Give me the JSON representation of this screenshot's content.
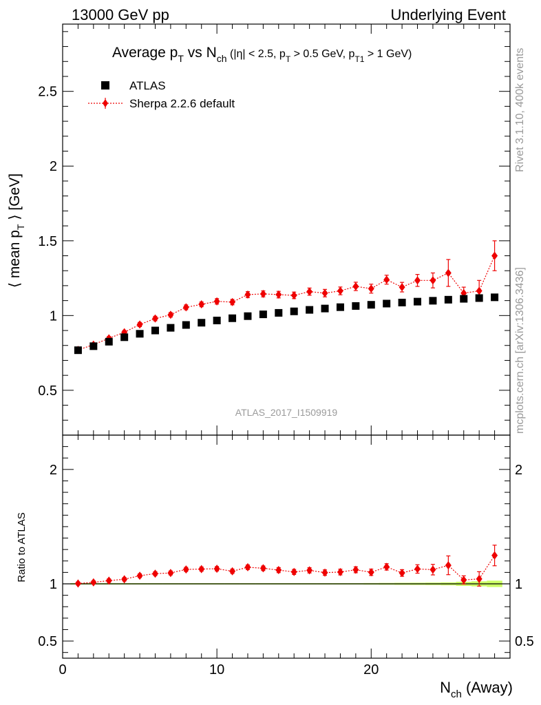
{
  "header": {
    "left": "13000 GeV pp",
    "right": "Underlying Event"
  },
  "side_labels": {
    "rivet": "Rivet 3.1.10,  400k events",
    "mcplots": "mcplots.cern.ch [arXiv:1306.3436]"
  },
  "chart_data": [
    {
      "type": "scatter",
      "title": {
        "main": "Average p",
        "sub1": "T",
        "mid": " vs N",
        "sub2": "ch",
        "cuts_a": " (|η| < 2.5, p",
        "cuts_sub1": "T",
        "cuts_b": " > 0.5 GeV, p",
        "cuts_sub2": "T1",
        "cuts_c": " > 1 GeV)"
      },
      "ylabel": {
        "pre": "⟨ mean p",
        "sub": "T",
        "post": " ⟩ [GeV]"
      },
      "watermark": "ATLAS_2017_I1509919",
      "xlim": [
        0,
        29
      ],
      "ylim": [
        0.2,
        2.95
      ],
      "yticks": [
        0.5,
        1,
        1.5,
        2,
        2.5
      ],
      "ytick_labels": [
        "0.5",
        "1",
        "1.5",
        "2",
        "2.5"
      ],
      "legend_position": "top-left",
      "x": [
        1,
        2,
        3,
        4,
        5,
        6,
        7,
        8,
        9,
        10,
        11,
        12,
        13,
        14,
        15,
        16,
        17,
        18,
        19,
        20,
        21,
        22,
        23,
        24,
        25,
        26,
        27,
        28
      ],
      "series": [
        {
          "name": "ATLAS",
          "color": "#000000",
          "marker": "square",
          "values": [
            0.768,
            0.795,
            0.825,
            0.855,
            0.878,
            0.9,
            0.918,
            0.937,
            0.952,
            0.967,
            0.982,
            0.996,
            1.008,
            1.018,
            1.028,
            1.038,
            1.047,
            1.056,
            1.064,
            1.072,
            1.08,
            1.087,
            1.093,
            1.099,
            1.106,
            1.112,
            1.117,
            1.122
          ],
          "errors": [
            0.005,
            0.005,
            0.005,
            0.005,
            0.005,
            0.005,
            0.005,
            0.005,
            0.005,
            0.005,
            0.005,
            0.005,
            0.005,
            0.005,
            0.005,
            0.005,
            0.005,
            0.005,
            0.005,
            0.005,
            0.005,
            0.005,
            0.005,
            0.005,
            0.006,
            0.008,
            0.01,
            0.012
          ]
        },
        {
          "name": "Sherpa 2.2.6 default",
          "color": "#ee0000",
          "marker": "diamond",
          "linestyle": "dotted",
          "values": [
            0.77,
            0.805,
            0.848,
            0.888,
            0.94,
            0.98,
            1.005,
            1.055,
            1.075,
            1.095,
            1.09,
            1.14,
            1.145,
            1.14,
            1.135,
            1.16,
            1.15,
            1.165,
            1.195,
            1.18,
            1.24,
            1.19,
            1.235,
            1.235,
            1.285,
            1.15,
            1.165,
            1.4
          ],
          "errors": [
            0.01,
            0.01,
            0.012,
            0.012,
            0.014,
            0.015,
            0.015,
            0.016,
            0.016,
            0.018,
            0.018,
            0.02,
            0.02,
            0.022,
            0.022,
            0.024,
            0.025,
            0.026,
            0.028,
            0.03,
            0.03,
            0.032,
            0.04,
            0.05,
            0.09,
            0.04,
            0.07,
            0.1
          ]
        }
      ]
    },
    {
      "type": "scatter",
      "ylabel": "Ratio to ATLAS",
      "xlabel_pre": "N",
      "xlabel_sub": "ch",
      "xlabel_post": " (Away)",
      "xlim": [
        0,
        29
      ],
      "ylim": [
        0.35,
        2.3
      ],
      "xticks": [
        0,
        10,
        20
      ],
      "xtick_labels": [
        "0",
        "10",
        "20"
      ],
      "yticks": [
        0.5,
        1,
        2
      ],
      "ytick_labels": [
        "0.5",
        "1",
        "2"
      ],
      "reference_line": 1,
      "band_color": "#ccff66",
      "x": [
        1,
        2,
        3,
        4,
        5,
        6,
        7,
        8,
        9,
        10,
        11,
        12,
        13,
        14,
        15,
        16,
        17,
        18,
        19,
        20,
        21,
        22,
        23,
        24,
        25,
        26,
        27,
        28
      ],
      "band_halfwidth": [
        0.006,
        0.006,
        0.006,
        0.006,
        0.006,
        0.006,
        0.006,
        0.006,
        0.006,
        0.006,
        0.006,
        0.006,
        0.006,
        0.006,
        0.006,
        0.006,
        0.006,
        0.006,
        0.006,
        0.007,
        0.008,
        0.009,
        0.01,
        0.011,
        0.013,
        0.018,
        0.022,
        0.028
      ],
      "series": [
        {
          "name": "Sherpa 2.2.6 default",
          "color": "#ee0000",
          "values": [
            1.003,
            1.013,
            1.028,
            1.04,
            1.071,
            1.089,
            1.095,
            1.126,
            1.129,
            1.132,
            1.11,
            1.145,
            1.136,
            1.12,
            1.104,
            1.118,
            1.098,
            1.103,
            1.123,
            1.101,
            1.148,
            1.095,
            1.13,
            1.124,
            1.162,
            1.034,
            1.043,
            1.248
          ],
          "errors": [
            0.013,
            0.013,
            0.015,
            0.015,
            0.016,
            0.017,
            0.017,
            0.018,
            0.018,
            0.019,
            0.019,
            0.02,
            0.02,
            0.022,
            0.022,
            0.023,
            0.024,
            0.025,
            0.026,
            0.028,
            0.028,
            0.029,
            0.037,
            0.046,
            0.082,
            0.036,
            0.063,
            0.09
          ]
        }
      ]
    }
  ]
}
